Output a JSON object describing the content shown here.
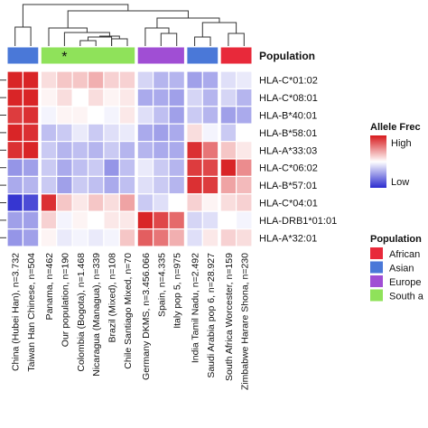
{
  "chart_data": {
    "type": "heatmap",
    "annotation_title": "Population",
    "star_label": "*",
    "rows": [
      "HLA-C*01:02",
      "HLA-C*08:01",
      "HLA-B*40:01",
      "HLA-B*58:01",
      "HLA-A*33:03",
      "HLA-C*06:02",
      "HLA-B*57:01",
      "HLA-C*04:01",
      "HLA-DRB1*01:01",
      "HLA-A*32:01"
    ],
    "columns": [
      "China (Hubei Han), n=3.732",
      "Taiwan Han Chinese, n=504",
      "Panama, n=462",
      "Our population, n=190",
      "Colombia (Bogota), n=1.468",
      "Nicaragua (Managua), n=339",
      "Brazil (Mixed), n=108",
      "Chile Santiago Mixed, n=70",
      "Germany DKMS, n=3.456.066",
      "Spain, n=4.335",
      "Italy pop 5, n=975",
      "India Tamil Nadu, n=2.492",
      "Saudi Arabia pop 6, n=28.927",
      "South Africa Worcester, n=159",
      "Zimbabwe Harare Shona, n=230"
    ],
    "column_population": [
      "Asian",
      "Asian",
      "South a",
      "South a",
      "South a",
      "South a",
      "South a",
      "South a",
      "Europe",
      "Europe",
      "Europe",
      "Asian",
      "Asian",
      "African",
      "African"
    ],
    "values": [
      [
        0.95,
        0.95,
        0.15,
        0.25,
        0.25,
        0.35,
        0.2,
        0.2,
        -0.2,
        -0.35,
        -0.35,
        -0.45,
        -0.4,
        -0.15,
        -0.1
      ],
      [
        0.95,
        0.95,
        0.05,
        0.15,
        0.0,
        0.15,
        0.05,
        0.1,
        -0.4,
        -0.4,
        -0.45,
        -0.2,
        -0.35,
        -0.2,
        -0.35
      ],
      [
        0.85,
        0.9,
        -0.05,
        0.05,
        0.05,
        0.0,
        -0.05,
        0.1,
        -0.15,
        -0.3,
        -0.45,
        -0.25,
        -0.35,
        -0.45,
        -0.4
      ],
      [
        0.95,
        0.9,
        -0.3,
        -0.25,
        -0.1,
        -0.25,
        -0.15,
        -0.1,
        -0.4,
        -0.45,
        -0.4,
        0.15,
        -0.05,
        -0.25,
        0.0
      ],
      [
        0.9,
        0.95,
        -0.25,
        -0.35,
        -0.3,
        -0.35,
        -0.25,
        -0.35,
        -0.35,
        -0.4,
        -0.4,
        0.9,
        0.6,
        0.25,
        0.1
      ],
      [
        -0.5,
        -0.45,
        -0.25,
        -0.4,
        -0.3,
        -0.25,
        -0.5,
        -0.3,
        -0.1,
        -0.25,
        -0.35,
        0.85,
        0.8,
        0.95,
        0.5
      ],
      [
        -0.4,
        -0.35,
        -0.25,
        -0.45,
        -0.25,
        -0.3,
        -0.4,
        -0.3,
        -0.15,
        -0.25,
        -0.35,
        0.9,
        0.85,
        0.4,
        0.3
      ],
      [
        -0.95,
        -0.85,
        0.9,
        0.25,
        0.1,
        0.25,
        0.15,
        0.4,
        -0.25,
        -0.15,
        0.0,
        0.2,
        0.05,
        0.15,
        0.2
      ],
      [
        -0.45,
        -0.45,
        0.2,
        -0.05,
        0.05,
        0.0,
        0.1,
        0.1,
        0.95,
        0.8,
        0.65,
        -0.2,
        -0.15,
        0.0,
        -0.05
      ],
      [
        -0.5,
        -0.45,
        0.05,
        -0.1,
        -0.05,
        -0.1,
        -0.05,
        0.25,
        0.7,
        0.6,
        0.35,
        -0.15,
        0.1,
        0.2,
        0.15
      ]
    ],
    "color_legend": {
      "title": "Allele Frec",
      "high_label": "High",
      "low_label": "Low",
      "high_color": "#d7191c",
      "mid_color": "#ffffff",
      "low_color": "#2b2bcf"
    },
    "population_legend": {
      "title": "Population",
      "items": [
        {
          "label": "African",
          "color": "#e8293a"
        },
        {
          "label": "Asian",
          "color": "#4a78d8"
        },
        {
          "label": "Europe",
          "color": "#a04ed4"
        },
        {
          "label": "South a",
          "color": "#8fe25a"
        }
      ]
    }
  }
}
